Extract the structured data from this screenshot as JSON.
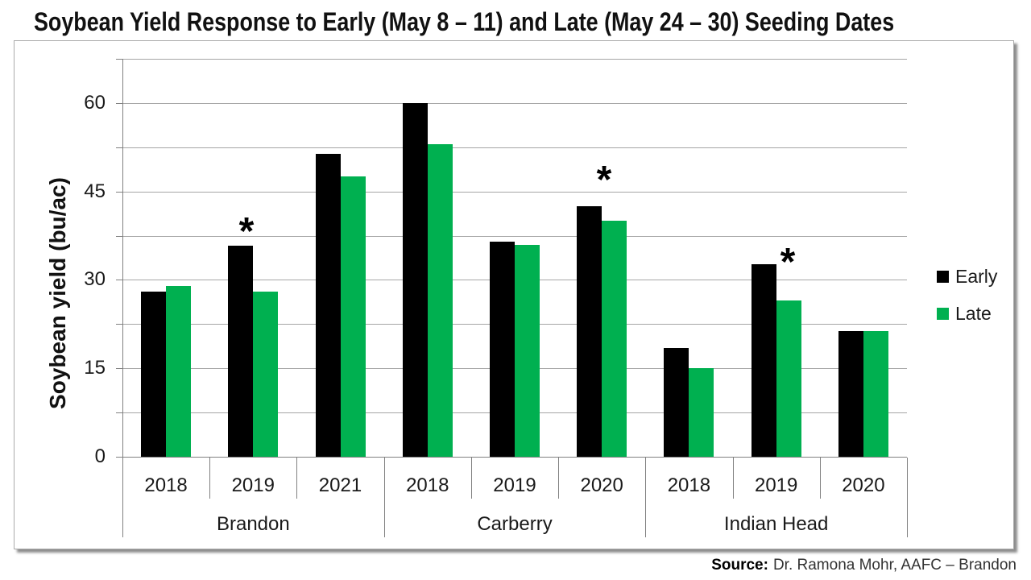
{
  "title": "Soybean Yield Response to Early (May 8 – 11) and Late (May 24 – 30) Seeding Dates",
  "source": {
    "label": "Source:",
    "text": "Dr. Ramona Mohr, AAFC – Brandon"
  },
  "colors": {
    "early": "#000000",
    "late": "#00B050",
    "gridline": "#a6a6a6",
    "axis": "#808080",
    "frame_border": "#ababab",
    "text": "#1a1a1a"
  },
  "chart_data": {
    "type": "bar",
    "title": "Soybean Yield Response to Early (May 8 – 11) and Late (May 24 – 30) Seeding Dates",
    "xlabel": "",
    "ylabel": "Soybean yield  (bu/ac)",
    "ylim": [
      0,
      67.5
    ],
    "ytick_step": 7.5,
    "yticks_labeled": [
      0,
      15,
      30,
      45,
      60
    ],
    "grid": true,
    "legend_position": "right-middle",
    "series": [
      {
        "name": "Early",
        "color": "#000000"
      },
      {
        "name": "Late",
        "color": "#00B050"
      }
    ],
    "groups": [
      {
        "location": "Brandon",
        "years": [
          {
            "year": "2018",
            "early": 28.0,
            "late": 29.0,
            "significant": false
          },
          {
            "year": "2019",
            "early": 35.8,
            "late": 28.0,
            "significant": true
          },
          {
            "year": "2021",
            "early": 51.4,
            "late": 47.5,
            "significant": false
          }
        ]
      },
      {
        "location": "Carberry",
        "years": [
          {
            "year": "2018",
            "early": 60.0,
            "late": 53.0,
            "significant": false
          },
          {
            "year": "2019",
            "early": 36.5,
            "late": 36.0,
            "significant": false
          },
          {
            "year": "2020",
            "early": 42.5,
            "late": 40.0,
            "significant": true
          }
        ]
      },
      {
        "location": "Indian Head",
        "years": [
          {
            "year": "2018",
            "early": 18.5,
            "late": 15.0,
            "significant": false
          },
          {
            "year": "2019",
            "early": 32.6,
            "late": 26.5,
            "significant": true
          },
          {
            "year": "2020",
            "early": 21.3,
            "late": 21.3,
            "significant": false
          }
        ]
      }
    ],
    "sig_marker_glyph": "*",
    "sig_markers": [
      {
        "group": "Brandon",
        "year": "2019",
        "x": 306,
        "y": 277
      },
      {
        "group": "Carberry",
        "year": "2020",
        "x": 750,
        "y": 213
      },
      {
        "group": "Indian Head",
        "year": "2019",
        "x": 978,
        "y": 315
      }
    ]
  }
}
